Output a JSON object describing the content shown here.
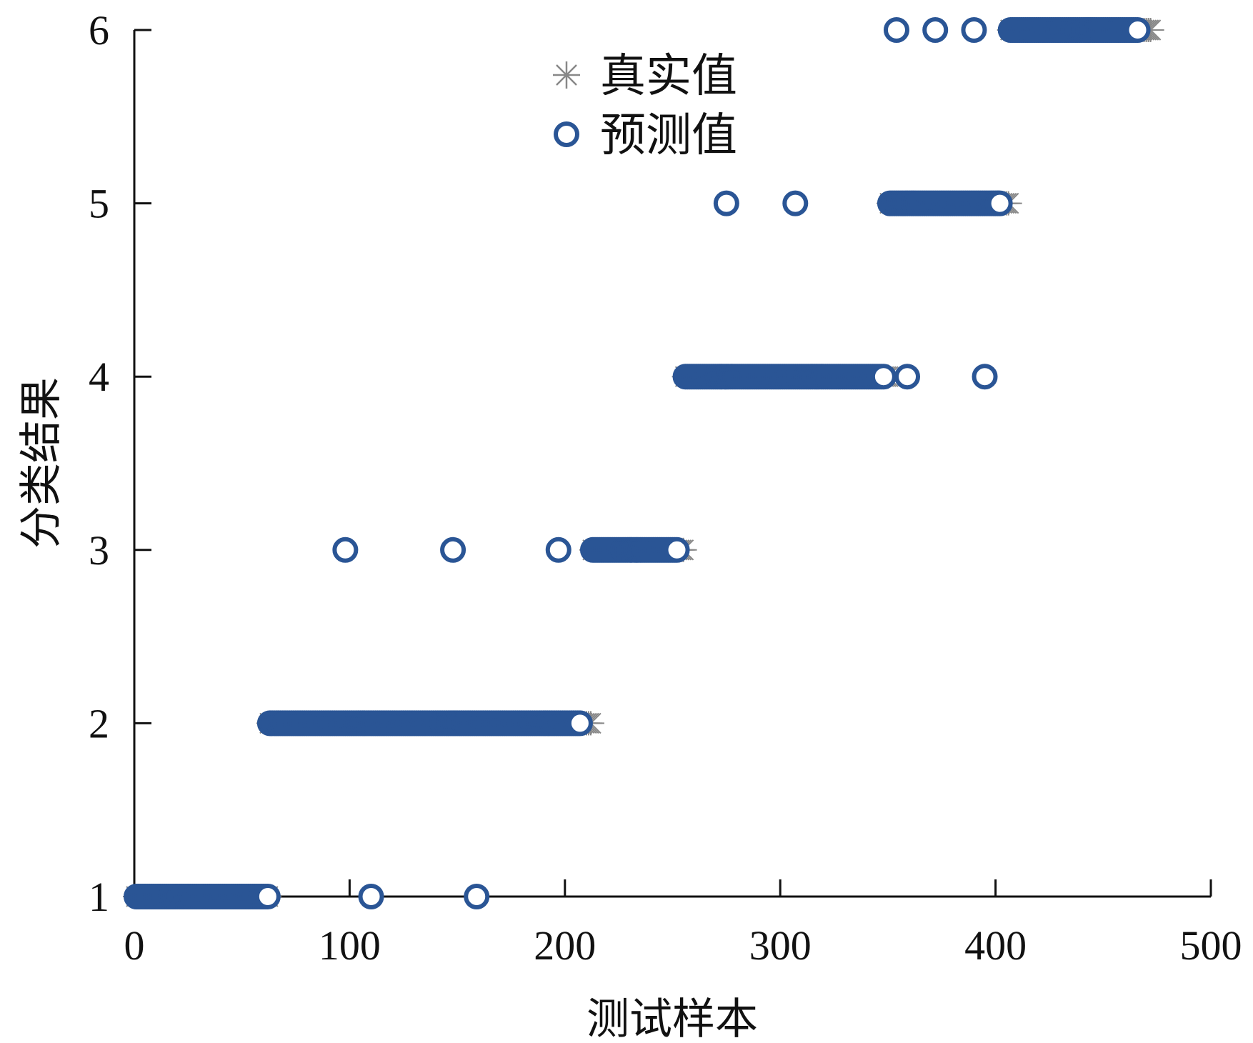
{
  "chart_data": {
    "type": "scatter",
    "xlabel": "测试样本",
    "ylabel": "分类结果",
    "xlim": [
      0,
      500
    ],
    "ylim": [
      1,
      6
    ],
    "xticks": [
      "0",
      "100",
      "200",
      "300",
      "400",
      "500"
    ],
    "yticks": [
      "1",
      "2",
      "3",
      "4",
      "5",
      "6"
    ],
    "grid": false,
    "legend_position": "top-center",
    "true_color": "#888888",
    "pred_color": "#2a5595",
    "legend": [
      {
        "label": "真实值",
        "marker": "asterisk"
      },
      {
        "label": "预测值",
        "marker": "circle"
      }
    ],
    "true_runs": [
      {
        "y": 1,
        "x_start": 1,
        "x_end": 62
      },
      {
        "y": 2,
        "x_start": 63,
        "x_end": 212
      },
      {
        "y": 3,
        "x_start": 213,
        "x_end": 255
      },
      {
        "y": 4,
        "x_start": 256,
        "x_end": 350
      },
      {
        "y": 5,
        "x_start": 351,
        "x_end": 406
      },
      {
        "y": 6,
        "x_start": 407,
        "x_end": 472
      }
    ],
    "pred_runs": [
      {
        "y": 1,
        "x_start": 1,
        "x_end": 62
      },
      {
        "y": 2,
        "x_start": 63,
        "x_end": 207
      },
      {
        "y": 3,
        "x_start": 213,
        "x_end": 252
      },
      {
        "y": 4,
        "x_start": 256,
        "x_end": 348
      },
      {
        "y": 5,
        "x_start": 351,
        "x_end": 402
      },
      {
        "y": 6,
        "x_start": 407,
        "x_end": 466
      }
    ],
    "pred_outliers": [
      {
        "x": 110,
        "y": 1
      },
      {
        "x": 159,
        "y": 1
      },
      {
        "x": 98,
        "y": 3
      },
      {
        "x": 148,
        "y": 3
      },
      {
        "x": 197,
        "y": 3
      },
      {
        "x": 359,
        "y": 4
      },
      {
        "x": 395,
        "y": 4
      },
      {
        "x": 275,
        "y": 5
      },
      {
        "x": 307,
        "y": 5
      },
      {
        "x": 354,
        "y": 6
      },
      {
        "x": 372,
        "y": 6
      },
      {
        "x": 390,
        "y": 6
      }
    ]
  }
}
